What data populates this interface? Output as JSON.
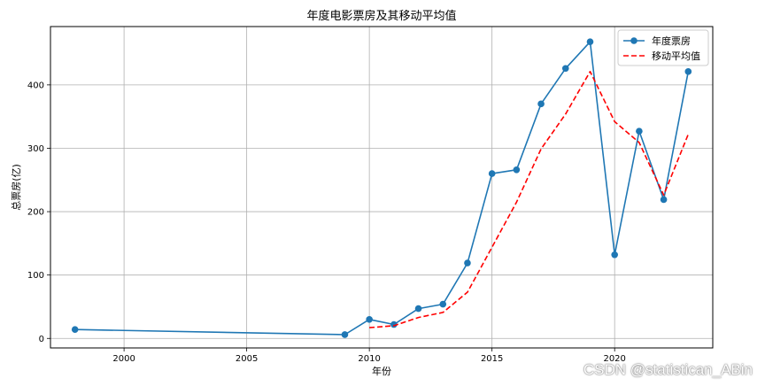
{
  "chart_data": {
    "type": "line",
    "title": "年度电影票房及其移动平均值",
    "xlabel": "年份",
    "ylabel": "总票房(亿)",
    "xlim": [
      1997,
      2024
    ],
    "ylim": [
      -15,
      492
    ],
    "xticks": [
      2000,
      2005,
      2010,
      2015,
      2020
    ],
    "yticks": [
      0,
      100,
      200,
      300,
      400
    ],
    "grid": true,
    "legend_position": "top-right",
    "series": [
      {
        "name": "年度票房",
        "style": "solid-marker",
        "color": "#1f77b4",
        "points": [
          [
            1998,
            14
          ],
          [
            2009,
            6
          ],
          [
            2010,
            30
          ],
          [
            2011,
            22
          ],
          [
            2012,
            47
          ],
          [
            2013,
            54
          ],
          [
            2014,
            119
          ],
          [
            2015,
            260
          ],
          [
            2016,
            266
          ],
          [
            2017,
            370
          ],
          [
            2018,
            426
          ],
          [
            2019,
            468
          ],
          [
            2020,
            132
          ],
          [
            2021,
            327
          ],
          [
            2022,
            219
          ],
          [
            2023,
            421
          ]
        ]
      },
      {
        "name": "移动平均值",
        "style": "dashed",
        "color": "#ff0000",
        "points": [
          [
            2010,
            17
          ],
          [
            2011,
            20
          ],
          [
            2012,
            33
          ],
          [
            2013,
            41
          ],
          [
            2014,
            73
          ],
          [
            2015,
            144
          ],
          [
            2016,
            215
          ],
          [
            2017,
            299
          ],
          [
            2018,
            354
          ],
          [
            2019,
            421
          ],
          [
            2020,
            342
          ],
          [
            2021,
            309
          ],
          [
            2022,
            226
          ],
          [
            2023,
            322
          ]
        ]
      }
    ]
  },
  "watermark": "CSDN @statistican_ABin"
}
